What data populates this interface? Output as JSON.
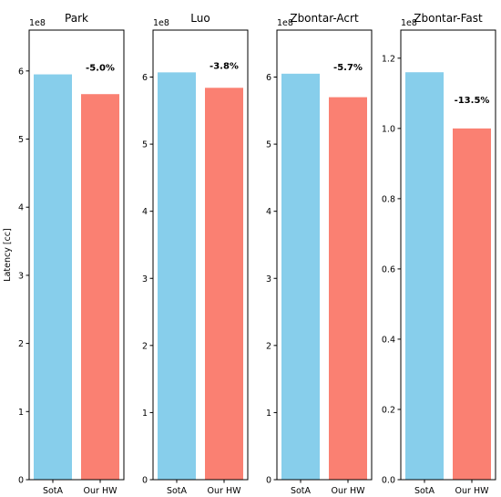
{
  "chart_data": [
    {
      "type": "bar",
      "title": "Park",
      "ylabel": "Latency [cc]",
      "offset_label": "1e8",
      "categories": [
        "SotA",
        "Our HW"
      ],
      "values": [
        5.95,
        5.66
      ],
      "bar_colors": [
        "#87CEEB",
        "#FA8072"
      ],
      "annotation": "-5.0%",
      "ylim": [
        0,
        6.6
      ],
      "yticks": [
        0,
        1,
        2,
        3,
        4,
        5,
        6
      ]
    },
    {
      "type": "bar",
      "title": "Luo",
      "ylabel": "",
      "offset_label": "1e8",
      "categories": [
        "SotA",
        "Our HW"
      ],
      "values": [
        6.07,
        5.84
      ],
      "bar_colors": [
        "#87CEEB",
        "#FA8072"
      ],
      "annotation": "-3.8%",
      "ylim": [
        0,
        6.7
      ],
      "yticks": [
        0,
        1,
        2,
        3,
        4,
        5,
        6
      ]
    },
    {
      "type": "bar",
      "title": "Zbontar-Acrt",
      "ylabel": "",
      "offset_label": "1e8",
      "categories": [
        "SotA",
        "Our HW"
      ],
      "values": [
        6.05,
        5.7
      ],
      "bar_colors": [
        "#87CEEB",
        "#FA8072"
      ],
      "annotation": "-5.7%",
      "ylim": [
        0,
        6.7
      ],
      "yticks": [
        0,
        1,
        2,
        3,
        4,
        5,
        6
      ]
    },
    {
      "type": "bar",
      "title": "Zbontar-Fast",
      "ylabel": "",
      "offset_label": "1e8",
      "categories": [
        "SotA",
        "Our HW"
      ],
      "values": [
        1.16,
        1.0
      ],
      "bar_colors": [
        "#87CEEB",
        "#FA8072"
      ],
      "annotation": "-13.5%",
      "ylim": [
        0,
        1.28
      ],
      "yticks": [
        "0.0",
        "0.2",
        "0.4",
        "0.6",
        "0.8",
        "1.0",
        "1.2"
      ]
    }
  ]
}
